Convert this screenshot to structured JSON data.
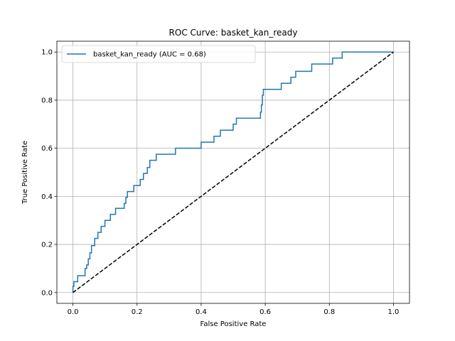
{
  "chart_data": {
    "type": "line",
    "title": "ROC Curve: basket_kan_ready",
    "xlabel": "False Positive Rate",
    "ylabel": "True Positive Rate",
    "xlim": [
      -0.05,
      1.05
    ],
    "ylim": [
      -0.045,
      1.045
    ],
    "x_ticks": [
      0.0,
      0.2,
      0.4,
      0.6,
      0.8,
      1.0
    ],
    "y_ticks": [
      0.0,
      0.2,
      0.4,
      0.6,
      0.8,
      1.0
    ],
    "x_tick_labels": [
      "0.0",
      "0.2",
      "0.4",
      "0.6",
      "0.8",
      "1.0"
    ],
    "y_tick_labels": [
      "0.0",
      "0.2",
      "0.4",
      "0.6",
      "0.8",
      "1.0"
    ],
    "grid": true,
    "legend_position": "top-left",
    "series": [
      {
        "name": "basket_kan_ready (AUC = 0.68)",
        "color": "#1f77b4",
        "style": "solid",
        "x": [
          0.0,
          0.0,
          0.003,
          0.003,
          0.015,
          0.015,
          0.038,
          0.038,
          0.043,
          0.043,
          0.048,
          0.048,
          0.053,
          0.053,
          0.058,
          0.058,
          0.068,
          0.068,
          0.078,
          0.078,
          0.088,
          0.088,
          0.1,
          0.1,
          0.117,
          0.117,
          0.133,
          0.133,
          0.16,
          0.16,
          0.165,
          0.165,
          0.17,
          0.17,
          0.19,
          0.19,
          0.21,
          0.21,
          0.22,
          0.22,
          0.232,
          0.232,
          0.24,
          0.24,
          0.26,
          0.26,
          0.32,
          0.32,
          0.4,
          0.4,
          0.44,
          0.44,
          0.46,
          0.46,
          0.5,
          0.5,
          0.51,
          0.51,
          0.585,
          0.585,
          0.588,
          0.588,
          0.591,
          0.591,
          0.594,
          0.594,
          0.65,
          0.65,
          0.68,
          0.68,
          0.695,
          0.695,
          0.745,
          0.745,
          0.81,
          0.81,
          0.84,
          0.84,
          1.0
        ],
        "y": [
          0.0,
          0.025,
          0.025,
          0.045,
          0.045,
          0.07,
          0.07,
          0.1,
          0.1,
          0.115,
          0.115,
          0.14,
          0.14,
          0.165,
          0.165,
          0.195,
          0.195,
          0.225,
          0.225,
          0.25,
          0.25,
          0.275,
          0.275,
          0.3,
          0.3,
          0.325,
          0.325,
          0.35,
          0.35,
          0.37,
          0.37,
          0.395,
          0.395,
          0.42,
          0.42,
          0.445,
          0.445,
          0.47,
          0.47,
          0.495,
          0.495,
          0.52,
          0.52,
          0.55,
          0.55,
          0.575,
          0.575,
          0.6,
          0.6,
          0.625,
          0.625,
          0.65,
          0.65,
          0.675,
          0.675,
          0.7,
          0.7,
          0.725,
          0.725,
          0.75,
          0.75,
          0.78,
          0.78,
          0.82,
          0.82,
          0.845,
          0.845,
          0.87,
          0.87,
          0.895,
          0.895,
          0.92,
          0.92,
          0.95,
          0.95,
          0.975,
          0.975,
          1.0,
          1.0
        ]
      },
      {
        "name": "",
        "color": "#000000",
        "style": "dashed",
        "x": [
          0.0,
          1.0
        ],
        "y": [
          0.0,
          1.0
        ]
      }
    ]
  }
}
